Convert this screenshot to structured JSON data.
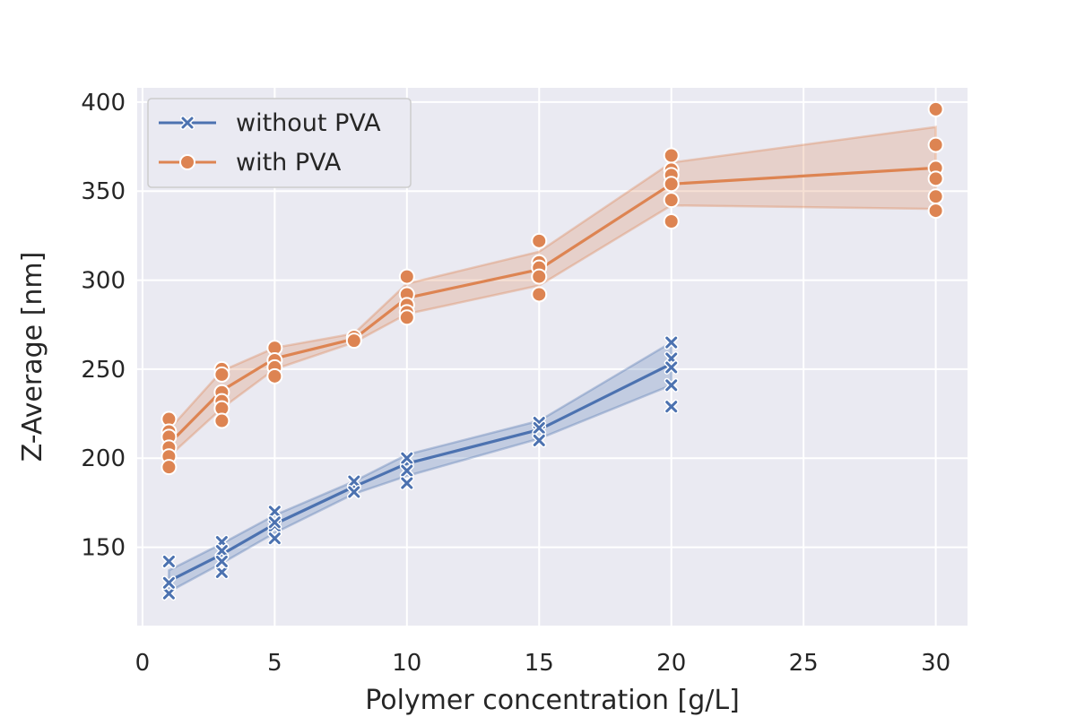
{
  "chart_data": {
    "type": "line",
    "xlabel": "Polymer concentration [g/L]",
    "ylabel": "Z-Average [nm]",
    "xlim": [
      -0.2,
      31.2
    ],
    "ylim": [
      106,
      408
    ],
    "xticks": [
      0,
      5,
      10,
      15,
      20,
      25,
      30
    ],
    "yticks": [
      150,
      200,
      250,
      300,
      350,
      400
    ],
    "grid": true,
    "legend_position": "top-left",
    "series": [
      {
        "name": "without PVA",
        "color": "#4c72b0",
        "marker": "x",
        "x": [
          1,
          3,
          5,
          8,
          10,
          15,
          20
        ],
        "mean": [
          131,
          146,
          163,
          184,
          197,
          216,
          253
        ],
        "ci_low": [
          125,
          141,
          158,
          180,
          190,
          211,
          241
        ],
        "ci_high": [
          137,
          152,
          168,
          187,
          202,
          221,
          265
        ],
        "points": [
          {
            "x": 1,
            "y": [
              142,
              124,
              130
            ]
          },
          {
            "x": 3,
            "y": [
              153,
              148,
              136,
              142
            ]
          },
          {
            "x": 5,
            "y": [
              170,
              162,
              155,
              164
            ]
          },
          {
            "x": 8,
            "y": [
              187,
              181
            ]
          },
          {
            "x": 10,
            "y": [
              200,
              193,
              186
            ]
          },
          {
            "x": 15,
            "y": [
              220,
              217,
              210
            ]
          },
          {
            "x": 20,
            "y": [
              265,
              256,
              251,
              241,
              229
            ]
          }
        ]
      },
      {
        "name": "with PVA",
        "color": "#dd8452",
        "marker": "o",
        "x": [
          1,
          3,
          5,
          8,
          10,
          15,
          20,
          30
        ],
        "mean": [
          208,
          238,
          256,
          267,
          290,
          306,
          354,
          363
        ],
        "ci_low": [
          201,
          228,
          250,
          265,
          281,
          297,
          342,
          340
        ],
        "ci_high": [
          216,
          249,
          262,
          270,
          298,
          316,
          366,
          386
        ],
        "points": [
          {
            "x": 1,
            "y": [
              222,
              215,
              212,
              206,
              201,
              195
            ]
          },
          {
            "x": 3,
            "y": [
              250,
              247,
              237,
              232,
              228,
              221
            ]
          },
          {
            "x": 5,
            "y": [
              262,
              255,
              251,
              246
            ]
          },
          {
            "x": 8,
            "y": [
              268,
              266
            ]
          },
          {
            "x": 10,
            "y": [
              302,
              292,
              286,
              282,
              279
            ]
          },
          {
            "x": 15,
            "y": [
              322,
              310,
              307,
              302,
              292
            ]
          },
          {
            "x": 20,
            "y": [
              370,
              362,
              359,
              354,
              345,
              333
            ]
          },
          {
            "x": 30,
            "y": [
              396,
              376,
              363,
              357,
              347,
              339
            ]
          }
        ]
      }
    ]
  }
}
